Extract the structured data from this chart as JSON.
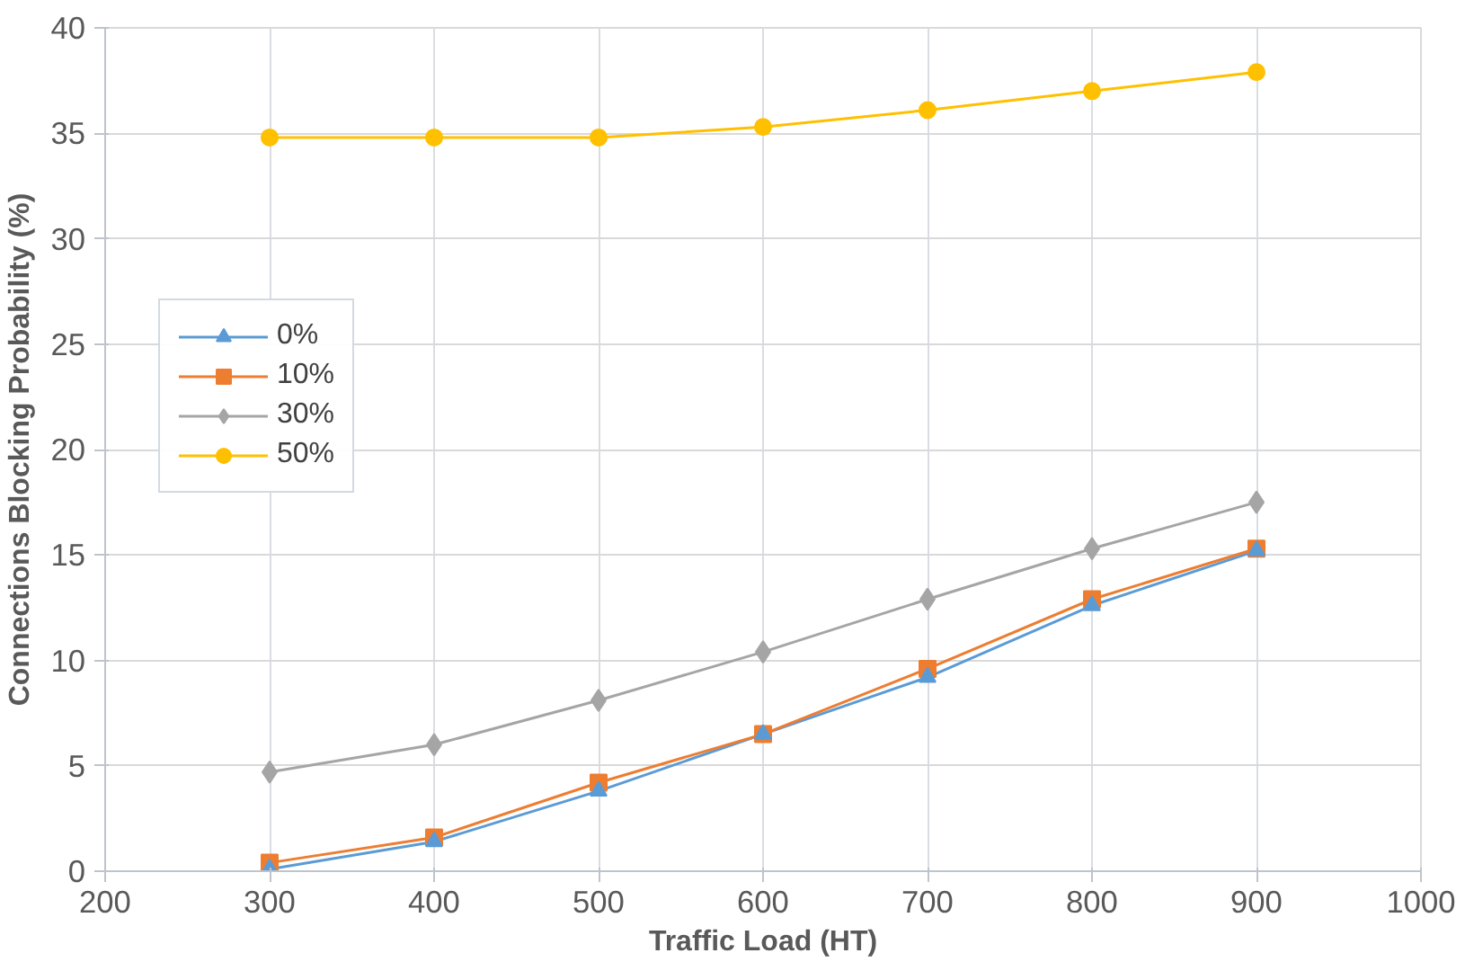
{
  "chart_data": {
    "type": "line",
    "xlabel": "Traffic Load (HT)",
    "ylabel": "Connections Blocking Probability (%)",
    "x": [
      300,
      400,
      500,
      600,
      700,
      800,
      900
    ],
    "series": [
      {
        "name": "0%",
        "color": "#5b9bd5",
        "marker": "triangle",
        "values": [
          0.1,
          1.4,
          3.8,
          6.5,
          9.2,
          12.6,
          15.2
        ]
      },
      {
        "name": "10%",
        "color": "#ed7d31",
        "marker": "square",
        "values": [
          0.4,
          1.6,
          4.2,
          6.5,
          9.6,
          12.9,
          15.3
        ]
      },
      {
        "name": "30%",
        "color": "#a5a5a5",
        "marker": "diamond",
        "values": [
          4.7,
          6.0,
          8.1,
          10.4,
          12.9,
          15.3,
          17.5
        ]
      },
      {
        "name": "50%",
        "color": "#ffc000",
        "marker": "circle",
        "values": [
          34.8,
          34.8,
          34.8,
          35.3,
          36.1,
          37.0,
          37.9
        ]
      }
    ],
    "xlim": [
      200,
      1000
    ],
    "xticks": [
      200,
      300,
      400,
      500,
      600,
      700,
      800,
      900,
      1000
    ],
    "ylim": [
      0,
      40
    ],
    "yticks": [
      0,
      5,
      10,
      15,
      20,
      25,
      30,
      35,
      40
    ],
    "grid": true,
    "legend": "top left"
  }
}
